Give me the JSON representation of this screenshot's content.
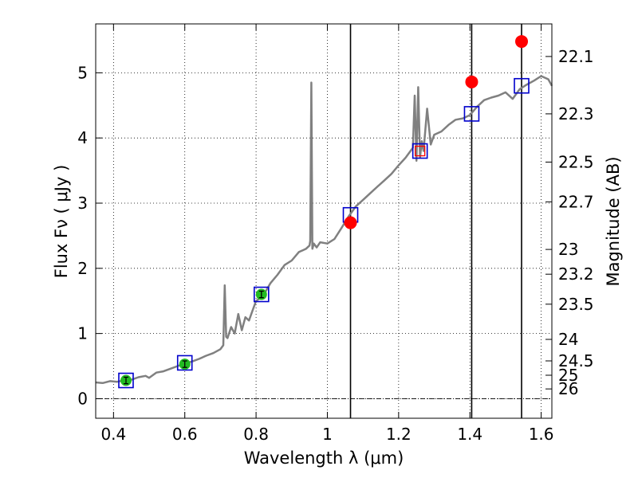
{
  "chart_data": {
    "type": "line",
    "title": "",
    "xlabel": "Wavelength  λ (μm)",
    "ylabel": "Flux  Fν  ( μJy )",
    "y2label": "Magnitude (AB)",
    "xlim": [
      0.35,
      1.63
    ],
    "ylim": [
      -0.3,
      5.75
    ],
    "x_ticks": [
      0.4,
      0.6,
      0.8,
      1.0,
      1.2,
      1.4,
      1.6
    ],
    "x_tick_labels": [
      "0.4",
      "0.6",
      "0.8",
      "1",
      "1.2",
      "1.4",
      "1.6"
    ],
    "y_ticks": [
      0,
      1,
      2,
      3,
      4,
      5
    ],
    "y_tick_labels": [
      "0",
      "1",
      "2",
      "3",
      "4",
      "5"
    ],
    "y2_ticks": [
      {
        "label": "22.1",
        "flux": 5.25
      },
      {
        "label": "22.3",
        "flux": 4.37
      },
      {
        "label": "22.5",
        "flux": 3.63
      },
      {
        "label": "22.7",
        "flux": 3.02
      },
      {
        "label": "23",
        "flux": 2.29
      },
      {
        "label": "23.2",
        "flux": 1.91
      },
      {
        "label": "23.5",
        "flux": 1.45
      },
      {
        "label": "24",
        "flux": 0.91
      },
      {
        "label": "24.5",
        "flux": 0.58
      },
      {
        "label": "25",
        "flux": 0.36
      },
      {
        "label": "26",
        "flux": 0.15
      }
    ],
    "grid": true,
    "spectrum": {
      "color": "#808080",
      "x": [
        0.35,
        0.37,
        0.39,
        0.41,
        0.43,
        0.45,
        0.47,
        0.49,
        0.5,
        0.52,
        0.54,
        0.56,
        0.58,
        0.6,
        0.62,
        0.64,
        0.66,
        0.68,
        0.7,
        0.708,
        0.712,
        0.716,
        0.72,
        0.73,
        0.74,
        0.75,
        0.76,
        0.77,
        0.78,
        0.79,
        0.8,
        0.82,
        0.84,
        0.86,
        0.88,
        0.9,
        0.92,
        0.94,
        0.95,
        0.952,
        0.955,
        0.958,
        0.962,
        0.97,
        0.98,
        1.0,
        1.02,
        1.04,
        1.06,
        1.08,
        1.1,
        1.12,
        1.14,
        1.16,
        1.18,
        1.2,
        1.22,
        1.24,
        1.245,
        1.25,
        1.255,
        1.26,
        1.265,
        1.27,
        1.28,
        1.29,
        1.3,
        1.32,
        1.34,
        1.36,
        1.38,
        1.4,
        1.42,
        1.44,
        1.46,
        1.48,
        1.5,
        1.52,
        1.54,
        1.56,
        1.58,
        1.6,
        1.62,
        1.63
      ],
      "y": [
        0.25,
        0.24,
        0.27,
        0.26,
        0.28,
        0.29,
        0.33,
        0.35,
        0.32,
        0.4,
        0.42,
        0.46,
        0.5,
        0.54,
        0.57,
        0.61,
        0.66,
        0.7,
        0.76,
        0.82,
        1.74,
        0.95,
        0.93,
        1.1,
        1.0,
        1.3,
        1.05,
        1.25,
        1.2,
        1.35,
        1.5,
        1.58,
        1.77,
        1.9,
        2.05,
        2.12,
        2.25,
        2.3,
        2.35,
        2.42,
        4.85,
        2.3,
        2.38,
        2.32,
        2.4,
        2.38,
        2.45,
        2.62,
        2.8,
        2.95,
        3.05,
        3.15,
        3.25,
        3.35,
        3.45,
        3.58,
        3.7,
        3.85,
        4.65,
        3.65,
        4.78,
        3.7,
        3.95,
        3.8,
        4.45,
        3.9,
        4.05,
        4.1,
        4.2,
        4.28,
        4.3,
        4.35,
        4.48,
        4.58,
        4.62,
        4.65,
        4.7,
        4.6,
        4.75,
        4.82,
        4.88,
        4.95,
        4.9,
        4.8
      ]
    },
    "model_squares": {
      "color": "#0000cc",
      "x": [
        0.435,
        0.6,
        0.815,
        1.065,
        1.26,
        1.405,
        1.545
      ],
      "y": [
        0.28,
        0.55,
        1.6,
        2.82,
        3.8,
        4.37,
        4.8
      ]
    },
    "observed_points": {
      "color": "#22bb22",
      "x": [
        0.435,
        0.6,
        0.815
      ],
      "y": [
        0.28,
        0.53,
        1.6
      ],
      "yerr": [
        0.05,
        0.05,
        0.05
      ]
    },
    "predicted_points": {
      "color": "#ff0000",
      "x": [
        1.065,
        1.405,
        1.545
      ],
      "y": [
        2.7,
        4.86,
        5.48
      ]
    },
    "vertical_lines": [
      1.065,
      1.405,
      1.545
    ],
    "inner_square": {
      "x": 1.26,
      "y": 3.8,
      "color": "#ff0000"
    }
  }
}
